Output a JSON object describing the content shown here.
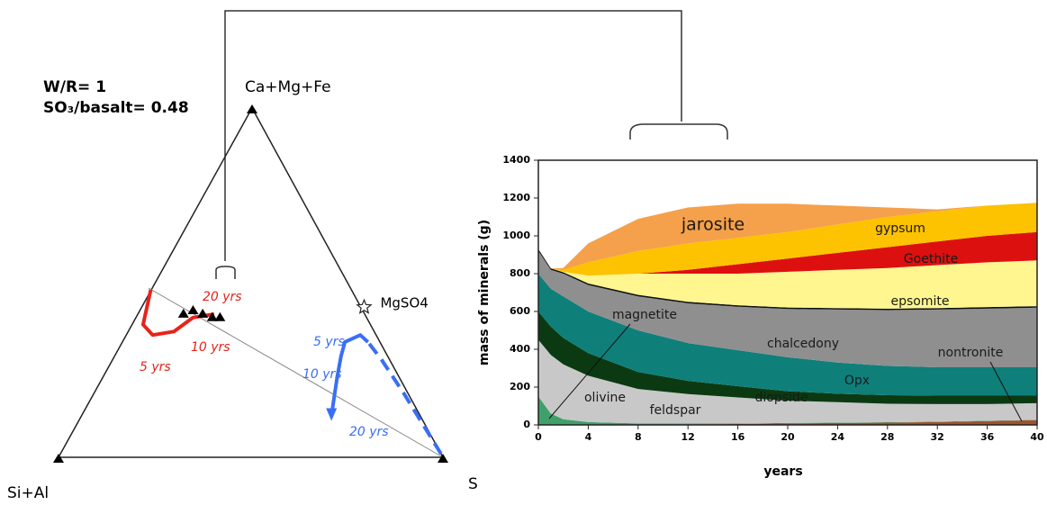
{
  "chart_data": [
    {
      "type": "ternary",
      "vertices": [
        "Ca+Mg+Fe",
        "Si+Al",
        "S"
      ],
      "annotations": [
        "W/R= 1",
        "SO₃/basalt= 0.48"
      ],
      "point": {
        "label": "MgSO4",
        "top": 0.43,
        "right": 0.58
      },
      "series": [
        {
          "color": "#e8231b",
          "top": [
            0.48,
            0.38,
            0.35,
            0.36,
            0.4,
            0.41
          ],
          "right": [
            0,
            0.03,
            0.07,
            0.12,
            0.15,
            0.2
          ],
          "labels": [
            "5 yrs",
            "10 yrs",
            "20 yrs"
          ]
        },
        {
          "color": "#3a6ef5",
          "dashed": true,
          "top": [
            0.01,
            0.18,
            0.28,
            0.33
          ],
          "right": [
            0.99,
            0.81,
            0.7,
            0.64
          ]
        },
        {
          "color": "#3a6ef5",
          "top": [
            0.33,
            0.35,
            0.33,
            0.29,
            0.23,
            0.12
          ],
          "right": [
            0.64,
            0.61,
            0.58,
            0.59,
            0.61,
            0.65
          ],
          "labels": [
            "5 yrs",
            "10 yrs",
            "20 yrs"
          ]
        },
        {
          "color": "#000000",
          "scatter": true,
          "top": [
            0.41,
            0.42,
            0.41,
            0.4,
            0.4
          ],
          "right": [
            0.12,
            0.14,
            0.17,
            0.2,
            0.22
          ]
        }
      ]
    },
    {
      "type": "stackedarea",
      "x_label": "years",
      "y_label": "mass of minerals (g)",
      "x": [
        0,
        1,
        2,
        4,
        8,
        12,
        16,
        20,
        24,
        28,
        32,
        36,
        40
      ],
      "xlim": [
        0,
        40
      ],
      "xticks": [
        0,
        4,
        8,
        12,
        16,
        20,
        24,
        28,
        32,
        36,
        40
      ],
      "ylim": [
        0,
        1400
      ],
      "yticks": [
        0,
        200,
        400,
        600,
        800,
        1000,
        1200,
        1400
      ],
      "series": [
        {
          "name": "nontronite",
          "color": "#a0522d",
          "values": [
            0,
            0,
            0,
            0,
            0,
            3,
            5,
            8,
            10,
            12,
            15,
            20,
            25
          ]
        },
        {
          "name": "olivine",
          "color": "#3fa06a",
          "values": [
            150,
            60,
            30,
            15,
            8,
            5,
            3,
            2,
            2,
            2,
            2,
            2,
            2
          ]
        },
        {
          "name": "feldspar",
          "color": "#c8c8c8",
          "values": [
            300,
            310,
            290,
            245,
            182,
            155,
            137,
            118,
            108,
            98,
            93,
            88,
            88
          ]
        },
        {
          "name": "diopside",
          "color": "#0b3a12",
          "values": [
            150,
            150,
            140,
            120,
            90,
            70,
            60,
            50,
            45,
            45,
            45,
            45,
            40
          ]
        },
        {
          "name": "Opx",
          "color": "#0f7f7a",
          "values": [
            200,
            200,
            220,
            220,
            220,
            200,
            190,
            180,
            165,
            155,
            150,
            150,
            150
          ]
        },
        {
          "name": "chalcedony",
          "color": "#8f8f8f",
          "values": [
            120,
            100,
            120,
            140,
            180,
            210,
            230,
            255,
            280,
            295,
            305,
            310,
            315
          ]
        },
        {
          "name": "magnetite",
          "color": "#111111",
          "values": [
            10,
            8,
            8,
            8,
            8,
            8,
            8,
            8,
            8,
            8,
            8,
            8,
            8
          ]
        },
        {
          "name": "epsomite",
          "color": "#fff68f",
          "values": [
            0,
            0,
            2,
            42,
            112,
            149,
            167,
            189,
            202,
            215,
            227,
            237,
            242
          ]
        },
        {
          "name": "Goethite",
          "color": "#dd1010",
          "values": [
            0,
            0,
            0,
            0,
            0,
            20,
            50,
            70,
            90,
            110,
            125,
            140,
            150
          ]
        },
        {
          "name": "gypsum",
          "color": "#fdc200",
          "values": [
            0,
            0,
            10,
            70,
            120,
            140,
            140,
            140,
            150,
            160,
            160,
            160,
            155
          ]
        },
        {
          "name": "jarosite",
          "color": "#f5a04a",
          "values": [
            0,
            0,
            10,
            100,
            170,
            190,
            180,
            150,
            100,
            50,
            10,
            0,
            0
          ]
        }
      ]
    }
  ]
}
